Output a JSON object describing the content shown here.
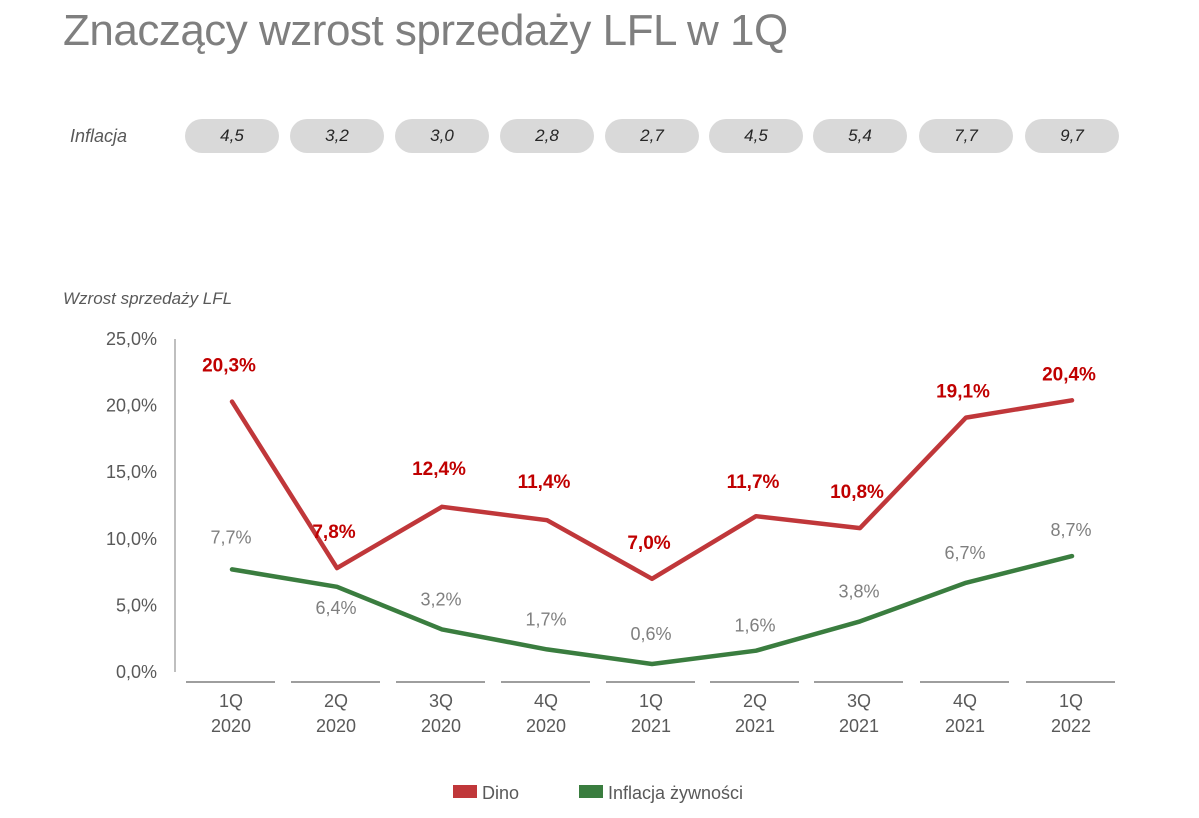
{
  "title": "Znaczący wzrost sprzedaży LFL w 1Q",
  "inflation_row": {
    "label": "Inflacja",
    "values": [
      "4,5",
      "3,2",
      "3,0",
      "2,8",
      "2,7",
      "4,5",
      "5,4",
      "7,7",
      "9,7"
    ]
  },
  "chart_data": {
    "type": "line",
    "title": "",
    "ylabel": "Wzrost sprzedaży LFL",
    "xlabel": "",
    "ylim": [
      0,
      25
    ],
    "yticks": [
      "0,0%",
      "5,0%",
      "10,0%",
      "15,0%",
      "20,0%",
      "25,0%"
    ],
    "ytick_values": [
      0,
      5,
      10,
      15,
      20,
      25
    ],
    "categories": [
      [
        "1Q",
        "2020"
      ],
      [
        "2Q",
        "2020"
      ],
      [
        "3Q",
        "2020"
      ],
      [
        "4Q",
        "2020"
      ],
      [
        "1Q",
        "2021"
      ],
      [
        "2Q",
        "2021"
      ],
      [
        "3Q",
        "2021"
      ],
      [
        "4Q",
        "2021"
      ],
      [
        "1Q",
        "2022"
      ]
    ],
    "series": [
      {
        "name": "Dino",
        "color": "#c0373a",
        "values": [
          20.3,
          7.8,
          12.4,
          11.4,
          7.0,
          11.7,
          10.8,
          19.1,
          20.4
        ],
        "labels": [
          "20,3%",
          "7,8%",
          "12,4%",
          "11,4%",
          "7,0%",
          "11,7%",
          "10,8%",
          "19,1%",
          "20,4%"
        ]
      },
      {
        "name": "Inflacja żywności",
        "color": "#3a7d3f",
        "values": [
          7.7,
          6.4,
          3.2,
          1.7,
          0.6,
          1.6,
          3.8,
          6.7,
          8.7
        ],
        "labels": [
          "7,7%",
          "6,4%",
          "3,2%",
          "1,7%",
          "0,6%",
          "1,6%",
          "3,8%",
          "6,7%",
          "8,7%"
        ]
      }
    ],
    "legend": [
      "Dino",
      "Inflacja żywności"
    ]
  }
}
